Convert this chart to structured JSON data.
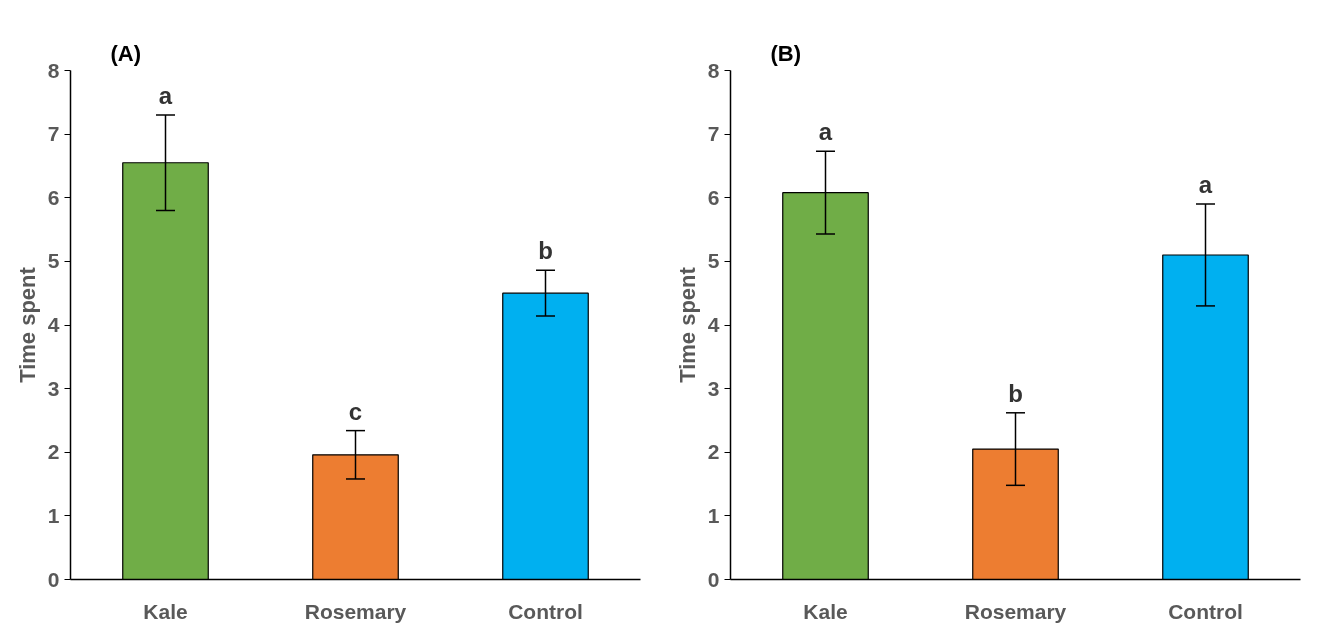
{
  "chart_data": [
    {
      "type": "bar",
      "title": "(A)",
      "ylabel": "Time spent",
      "categories": [
        "Kale",
        "Rosemary",
        "Control"
      ],
      "values": [
        6.55,
        1.96,
        4.5
      ],
      "colors": [
        "#70ad47",
        "#ed7d31",
        "#00b0f0"
      ],
      "errors": [
        0.75,
        0.38,
        0.36
      ],
      "ylim": [
        0,
        8
      ],
      "yticks": [
        0,
        1,
        2,
        3,
        4,
        5,
        6,
        7,
        8
      ],
      "grid": false,
      "annotations": [
        "a",
        "c",
        "b"
      ]
    },
    {
      "type": "bar",
      "title": "(B)",
      "ylabel": "Time spent",
      "categories": [
        "Kale",
        "Rosemary",
        "Control"
      ],
      "values": [
        6.08,
        2.05,
        5.1
      ],
      "colors": [
        "#70ad47",
        "#ed7d31",
        "#00b0f0"
      ],
      "errors": [
        0.65,
        0.57,
        0.8
      ],
      "ylim": [
        0,
        8
      ],
      "yticks": [
        0,
        1,
        2,
        3,
        4,
        5,
        6,
        7,
        8
      ],
      "grid": false,
      "annotations": [
        "a",
        "b",
        "a"
      ]
    }
  ]
}
